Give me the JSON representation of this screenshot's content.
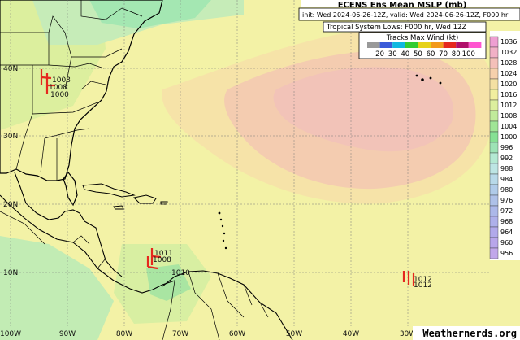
{
  "header": {
    "title": "ECENS Ens Mean MSLP (mb)",
    "init_valid": "init: Wed 2024-06-26-12Z, valid: Wed 2024-06-26-12Z, F000 hr",
    "tropical_lows": "Tropical System Lows: F000 hr, Wed 12Z"
  },
  "tracks_legend": {
    "title": "Tracks Max Wind (kt)",
    "labels": [
      "20",
      "30",
      "40",
      "50",
      "60",
      "70",
      "80",
      "100"
    ],
    "colors": [
      "#999999",
      "#3b5bd9",
      "#10b8e0",
      "#33cc33",
      "#e6d21a",
      "#f29a1a",
      "#e5281e",
      "#b0106b",
      "#ff55d0"
    ]
  },
  "colorbar": {
    "labels": [
      "1036",
      "1032",
      "1028",
      "1024",
      "1020",
      "1016",
      "1012",
      "1008",
      "1004",
      "1000",
      "996",
      "992",
      "988",
      "984",
      "980",
      "976",
      "972",
      "968",
      "964",
      "960",
      "956"
    ],
    "colors": [
      "#ee9fd2",
      "#f1b0c6",
      "#f4c0b9",
      "#f6d0ac",
      "#f4e0a3",
      "#f1ee9f",
      "#dcef9e",
      "#c1eb9b",
      "#a0e596",
      "#86e094",
      "#9de3b6",
      "#b4e9d3",
      "#bde5e4",
      "#b8d9e9",
      "#b0cbe9",
      "#aec1e8",
      "#acb8e9",
      "#aeb0ea",
      "#b1a9ea",
      "#b8a6ea",
      "#c1a7ea"
    ]
  },
  "lat_labels": [
    "40N",
    "30N",
    "20N",
    "10N"
  ],
  "lon_labels": [
    "100W",
    "90W",
    "80W",
    "70W",
    "60W",
    "50W",
    "40W",
    "30W"
  ],
  "lows": [
    {
      "name": "low-great-lakes",
      "labels": [
        "1008",
        "1008",
        "1000"
      ],
      "track_color": "#e5281e"
    },
    {
      "name": "low-central-america",
      "labels": [
        "1011",
        "1008",
        "1010"
      ],
      "track_color": "#e5281e"
    },
    {
      "name": "low-mid-atlantic",
      "labels": [
        "1012",
        "1012"
      ],
      "track_color": "#e5281e"
    }
  ],
  "credit": "Weathernerds.org"
}
